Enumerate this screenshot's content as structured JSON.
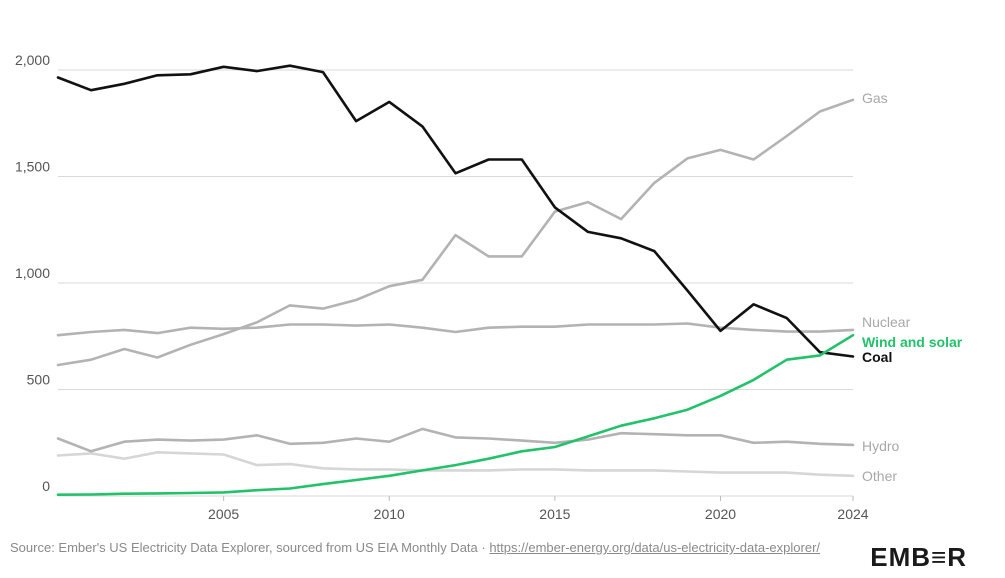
{
  "chart_data": {
    "type": "line",
    "x": [
      2000,
      2001,
      2002,
      2003,
      2004,
      2005,
      2006,
      2007,
      2008,
      2009,
      2010,
      2011,
      2012,
      2013,
      2014,
      2015,
      2016,
      2017,
      2018,
      2019,
      2020,
      2021,
      2022,
      2023,
      2024
    ],
    "xticks": [
      "2005",
      "2010",
      "2015",
      "2020",
      "2024"
    ],
    "yticks": [
      "0",
      "500",
      "1,000",
      "1,500",
      "2,000"
    ],
    "ylim": [
      0,
      2000
    ],
    "grid": true,
    "series": [
      {
        "name": "Gas",
        "color": "#b3b3b3",
        "values": [
          615,
          640,
          690,
          650,
          710,
          760,
          815,
          895,
          880,
          920,
          985,
          1015,
          1225,
          1125,
          1125,
          1335,
          1380,
          1300,
          1470,
          1585,
          1625,
          1580,
          1690,
          1805,
          1860
        ]
      },
      {
        "name": "Nuclear",
        "color": "#b3b3b3",
        "values": [
          755,
          770,
          780,
          765,
          790,
          785,
          790,
          805,
          805,
          800,
          805,
          790,
          770,
          790,
          795,
          795,
          805,
          805,
          805,
          810,
          790,
          780,
          772,
          772,
          780
        ]
      },
      {
        "name": "Wind and solar",
        "color": "#21c26a",
        "values": [
          6,
          7,
          11,
          12,
          14,
          17,
          27,
          35,
          56,
          75,
          95,
          120,
          145,
          175,
          210,
          230,
          280,
          330,
          365,
          405,
          470,
          545,
          640,
          660,
          755
        ]
      },
      {
        "name": "Coal",
        "color": "#111111",
        "values": [
          1965,
          1905,
          1935,
          1975,
          1980,
          2015,
          1995,
          2020,
          1990,
          1760,
          1850,
          1735,
          1515,
          1580,
          1580,
          1355,
          1240,
          1210,
          1150,
          965,
          775,
          900,
          835,
          675,
          655
        ]
      },
      {
        "name": "Hydro",
        "color": "#b3b3b3",
        "values": [
          270,
          210,
          255,
          265,
          260,
          265,
          285,
          245,
          250,
          270,
          255,
          315,
          275,
          270,
          260,
          250,
          265,
          295,
          290,
          285,
          285,
          250,
          255,
          245,
          240
        ]
      },
      {
        "name": "Other",
        "color": "#d6d6d6",
        "values": [
          190,
          200,
          175,
          205,
          200,
          195,
          145,
          150,
          130,
          125,
          125,
          120,
          120,
          120,
          125,
          125,
          120,
          120,
          120,
          115,
          110,
          110,
          110,
          100,
          95
        ]
      }
    ]
  },
  "footer": {
    "source_text": "Source: Ember's US Electricity Data Explorer, sourced from US EIA Monthly Data · ",
    "link_text": "https://ember-energy.org/data/us-electricity-data-explorer/"
  },
  "logo": {
    "text": "EMB≡R",
    "color": "#1a1a1a"
  }
}
